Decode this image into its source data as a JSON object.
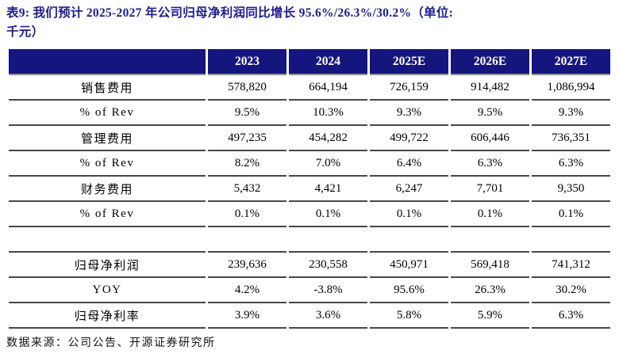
{
  "title": {
    "line1": "表9: 我们预计 2025-2027 年公司归母净利润同比增长 95.6%/26.3%/30.2%（单位:",
    "line2": "千元）"
  },
  "colors": {
    "title_text": "#1c1c8f",
    "header_bg": "#15157e",
    "header_text": "#ffffff",
    "row_line": "#474747",
    "header_line": "#8f8f8f"
  },
  "table": {
    "corner_label": "",
    "columns": [
      "2023",
      "2024",
      "2025E",
      "2026E",
      "2027E"
    ],
    "rows": [
      {
        "label": "销售费用",
        "values": [
          "578,820",
          "664,194",
          "726,159",
          "914,482",
          "1,086,994"
        ]
      },
      {
        "label": "% of Rev",
        "values": [
          "9.5%",
          "10.3%",
          "9.3%",
          "9.5%",
          "9.3%"
        ]
      },
      {
        "label": "管理费用",
        "values": [
          "497,235",
          "454,282",
          "499,722",
          "606,446",
          "736,351"
        ]
      },
      {
        "label": "% of Rev",
        "values": [
          "8.2%",
          "7.0%",
          "6.4%",
          "6.3%",
          "6.3%"
        ]
      },
      {
        "label": "财务费用",
        "values": [
          "5,432",
          "4,421",
          "6,247",
          "7,701",
          "9,350"
        ]
      },
      {
        "label": "% of Rev",
        "values": [
          "0.1%",
          "0.1%",
          "0.1%",
          "0.1%",
          "0.1%"
        ]
      },
      {
        "label": "",
        "values": [
          "",
          "",
          "",
          "",
          ""
        ]
      },
      {
        "label": "归母净利润",
        "values": [
          "239,636",
          "230,558",
          "450,971",
          "569,418",
          "741,312"
        ]
      },
      {
        "label": "YOY",
        "values": [
          "4.2%",
          "-3.8%",
          "95.6%",
          "26.3%",
          "30.2%"
        ]
      },
      {
        "label": "归母净利率",
        "values": [
          "3.9%",
          "3.6%",
          "5.8%",
          "5.9%",
          "6.3%"
        ]
      }
    ]
  },
  "footer": {
    "source": "数据来源：公司公告、开源证券研究所"
  }
}
